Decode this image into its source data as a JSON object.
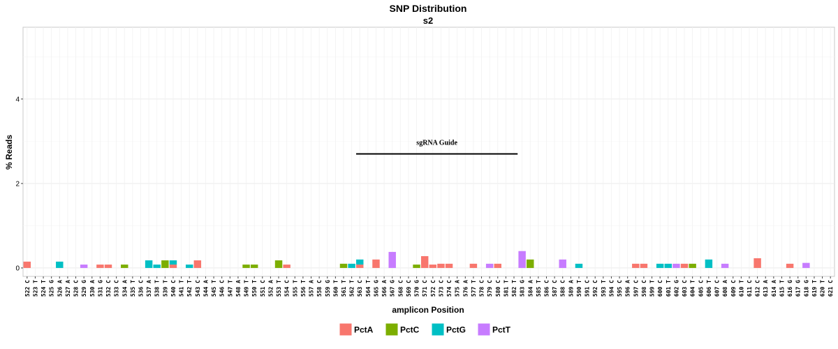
{
  "chart_data": {
    "type": "bar",
    "title": "SNP Distribution",
    "subtitle": "s2",
    "xlabel": "amplicon Position",
    "ylabel": "% Reads",
    "ylim": [
      -0.2,
      5.7
    ],
    "yticks": [
      0,
      2,
      4
    ],
    "grid": true,
    "legend_position": "bottom",
    "categories": [
      "522 C",
      "523 T",
      "524 T",
      "525 G",
      "526 A",
      "527 A",
      "528 C",
      "529 G",
      "530 A",
      "531 G",
      "532 C",
      "533 C",
      "534 A",
      "535 T",
      "536 C",
      "537 A",
      "538 T",
      "539 T",
      "540 C",
      "541 T",
      "542 T",
      "543 C",
      "544 A",
      "545 T",
      "546 C",
      "547 T",
      "548 A",
      "549 T",
      "550 T",
      "551 C",
      "552 A",
      "553 T",
      "554 C",
      "555 T",
      "556 T",
      "557 A",
      "558 C",
      "559 G",
      "560 T",
      "561 T",
      "562 T",
      "563 C",
      "564 T",
      "565 G",
      "566 A",
      "567 G",
      "568 C",
      "569 C",
      "570 G",
      "571 C",
      "572 C",
      "573 C",
      "574 C",
      "575 A",
      "576 A",
      "577 T",
      "578 C",
      "579 C",
      "580 C",
      "581 T",
      "582 T",
      "583 G",
      "584 A",
      "585 T",
      "586 C",
      "587 C",
      "588 C",
      "589 A",
      "590 T",
      "591 C",
      "592 C",
      "593 T",
      "594 C",
      "595 C",
      "596 A",
      "597 C",
      "598 C",
      "599 T",
      "600 C",
      "601 T",
      "602 G",
      "603 C",
      "604 T",
      "605 C",
      "606 T",
      "607 C",
      "608 A",
      "609 C",
      "610 T",
      "611 C",
      "612 C",
      "613 A",
      "614 A",
      "615 T",
      "616 G",
      "617 G",
      "618 G",
      "619 T",
      "620 T",
      "621 C"
    ],
    "series": [
      {
        "name": "PctA",
        "color": "#F8766D",
        "bars": [
          {
            "category": "522 C",
            "value": 0.15
          },
          {
            "category": "531 G",
            "value": 0.08
          },
          {
            "category": "532 C",
            "value": 0.08
          },
          {
            "category": "540 C",
            "value": 0.08
          },
          {
            "category": "543 C",
            "value": 0.18
          },
          {
            "category": "554 C",
            "value": 0.08
          },
          {
            "category": "563 C",
            "value": 0.08
          },
          {
            "category": "565 G",
            "value": 0.2
          },
          {
            "category": "571 C",
            "value": 0.28
          },
          {
            "category": "572 C",
            "value": 0.08
          },
          {
            "category": "573 C",
            "value": 0.1
          },
          {
            "category": "574 C",
            "value": 0.1
          },
          {
            "category": "577 T",
            "value": 0.1
          },
          {
            "category": "580 C",
            "value": 0.1
          },
          {
            "category": "597 C",
            "value": 0.1
          },
          {
            "category": "598 C",
            "value": 0.1
          },
          {
            "category": "603 C",
            "value": 0.1
          },
          {
            "category": "612 C",
            "value": 0.23
          },
          {
            "category": "616 G",
            "value": 0.1
          }
        ]
      },
      {
        "name": "PctC",
        "color": "#7CAE00",
        "bars": [
          {
            "category": "534 A",
            "value": 0.08
          },
          {
            "category": "539 T",
            "value": 0.18
          },
          {
            "category": "549 T",
            "value": 0.08
          },
          {
            "category": "550 T",
            "value": 0.08
          },
          {
            "category": "553 T",
            "value": 0.18
          },
          {
            "category": "561 T",
            "value": 0.1
          },
          {
            "category": "570 G",
            "value": 0.08
          },
          {
            "category": "584 A",
            "value": 0.2
          },
          {
            "category": "604 T",
            "value": 0.1
          }
        ]
      },
      {
        "name": "PctG",
        "color": "#00BFC4",
        "bars": [
          {
            "category": "526 A",
            "value": 0.15
          },
          {
            "category": "537 A",
            "value": 0.18
          },
          {
            "category": "538 T",
            "value": 0.08
          },
          {
            "category": "540 C",
            "value": 0.1
          },
          {
            "category": "542 T",
            "value": 0.08
          },
          {
            "category": "562 T",
            "value": 0.1
          },
          {
            "category": "563 C",
            "value": 0.12
          },
          {
            "category": "590 T",
            "value": 0.1
          },
          {
            "category": "600 C",
            "value": 0.1
          },
          {
            "category": "601 T",
            "value": 0.1
          },
          {
            "category": "606 T",
            "value": 0.2
          }
        ]
      },
      {
        "name": "PctT",
        "color": "#C77CFF",
        "bars": [
          {
            "category": "529 G",
            "value": 0.08
          },
          {
            "category": "567 G",
            "value": 0.38
          },
          {
            "category": "579 C",
            "value": 0.1
          },
          {
            "category": "583 G",
            "value": 0.4
          },
          {
            "category": "588 C",
            "value": 0.2
          },
          {
            "category": "602 G",
            "value": 0.1
          },
          {
            "category": "608 A",
            "value": 0.1
          },
          {
            "category": "618 G",
            "value": 0.12
          }
        ]
      }
    ],
    "annotation": {
      "label": "sgRNA Guide",
      "start": "563 C",
      "end": "582 T",
      "value": 2.7
    }
  }
}
